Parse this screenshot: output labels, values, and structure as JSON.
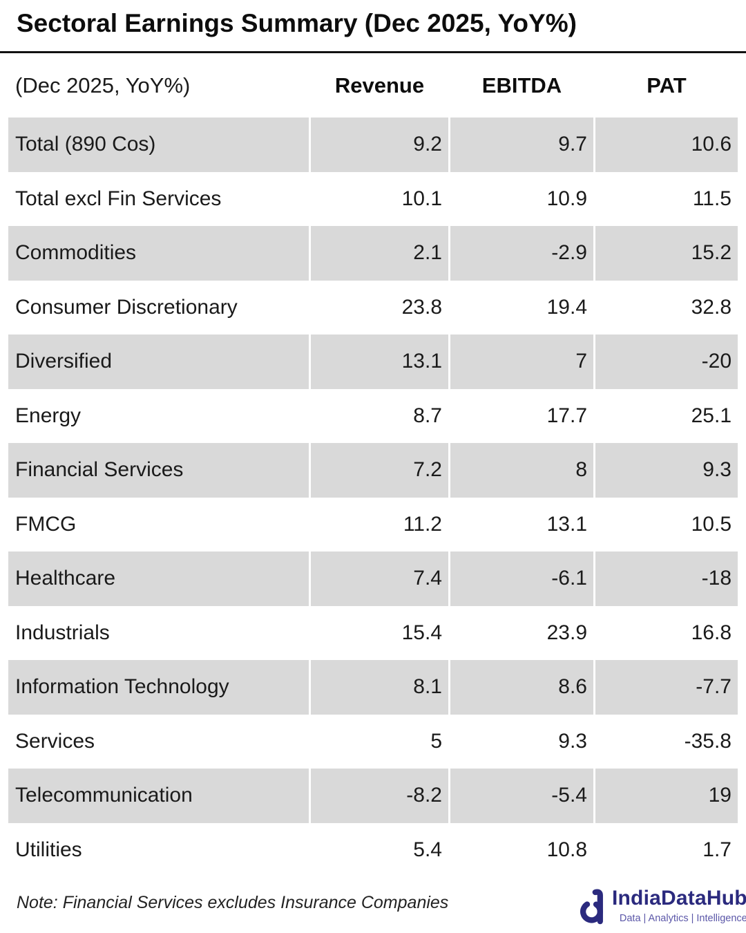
{
  "title": "Sectoral Earnings Summary (Dec 2025, YoY%)",
  "table": {
    "header": {
      "label": "(Dec 2025, YoY%)",
      "columns": [
        "Revenue",
        "EBITDA",
        "PAT"
      ]
    },
    "rows": [
      {
        "label": "Total (890 Cos)",
        "revenue": "9.2",
        "ebitda": "9.7",
        "pat": "10.6"
      },
      {
        "label": "Total excl Fin Services",
        "revenue": "10.1",
        "ebitda": "10.9",
        "pat": "11.5"
      },
      {
        "label": "Commodities",
        "revenue": "2.1",
        "ebitda": "-2.9",
        "pat": "15.2"
      },
      {
        "label": "Consumer Discretionary",
        "revenue": "23.8",
        "ebitda": "19.4",
        "pat": "32.8"
      },
      {
        "label": "Diversified",
        "revenue": "13.1",
        "ebitda": "7",
        "pat": "-20"
      },
      {
        "label": "Energy",
        "revenue": "8.7",
        "ebitda": "17.7",
        "pat": "25.1"
      },
      {
        "label": "Financial Services",
        "revenue": "7.2",
        "ebitda": "8",
        "pat": "9.3"
      },
      {
        "label": "FMCG",
        "revenue": "11.2",
        "ebitda": "13.1",
        "pat": "10.5"
      },
      {
        "label": "Healthcare",
        "revenue": "7.4",
        "ebitda": "-6.1",
        "pat": "-18"
      },
      {
        "label": "Industrials",
        "revenue": "15.4",
        "ebitda": "23.9",
        "pat": "16.8"
      },
      {
        "label": "Information Technology",
        "revenue": "8.1",
        "ebitda": "8.6",
        "pat": "-7.7"
      },
      {
        "label": "Services",
        "revenue": "5",
        "ebitda": "9.3",
        "pat": "-35.8"
      },
      {
        "label": "Telecommunication",
        "revenue": "-8.2",
        "ebitda": "-5.4",
        "pat": "19"
      },
      {
        "label": "Utilities",
        "revenue": "5.4",
        "ebitda": "10.8",
        "pat": "1.7"
      }
    ]
  },
  "note": "Note: Financial Services excludes Insurance Companies",
  "logo": {
    "name": "IndiaDataHub",
    "tagline": "Data | Analytics | Intelligence",
    "icon": "indiadatahub-d-icon"
  },
  "colors": {
    "row_shade": "#d9d9d9",
    "text": "#1a1a1a",
    "rule": "#111111",
    "logo_primary": "#2b2a7e",
    "logo_secondary": "#5b57a8"
  },
  "chart_data": {
    "type": "table",
    "title": "Sectoral Earnings Summary (Dec 2025, YoY%)",
    "columns": [
      "(Dec 2025, YoY%)",
      "Revenue",
      "EBITDA",
      "PAT"
    ],
    "categories": [
      "Total (890 Cos)",
      "Total excl Fin Services",
      "Commodities",
      "Consumer Discretionary",
      "Diversified",
      "Energy",
      "Financial Services",
      "FMCG",
      "Healthcare",
      "Industrials",
      "Information Technology",
      "Services",
      "Telecommunication",
      "Utilities"
    ],
    "series": [
      {
        "name": "Revenue",
        "values": [
          9.2,
          10.1,
          2.1,
          23.8,
          13.1,
          8.7,
          7.2,
          11.2,
          7.4,
          15.4,
          8.1,
          5,
          -8.2,
          5.4
        ]
      },
      {
        "name": "EBITDA",
        "values": [
          9.7,
          10.9,
          -2.9,
          19.4,
          7,
          17.7,
          8,
          13.1,
          -6.1,
          23.9,
          8.6,
          9.3,
          -5.4,
          10.8
        ]
      },
      {
        "name": "PAT",
        "values": [
          10.6,
          11.5,
          15.2,
          32.8,
          -20,
          25.1,
          9.3,
          10.5,
          -18,
          16.8,
          -7.7,
          -35.8,
          19,
          1.7
        ]
      }
    ],
    "note": "Note: Financial Services excludes Insurance Companies"
  }
}
